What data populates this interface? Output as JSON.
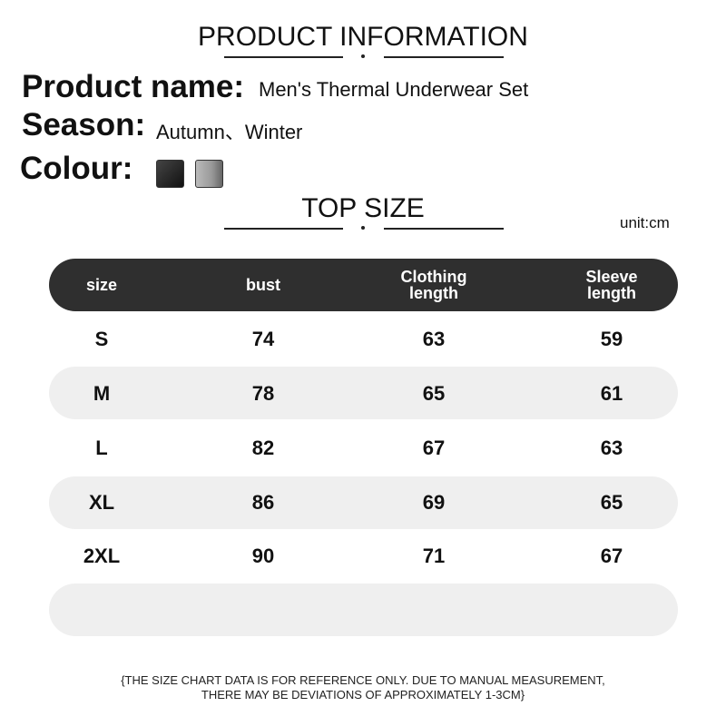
{
  "header": {
    "title": "PRODUCT INFORMATION"
  },
  "product": {
    "name_label": "Product name:",
    "name_value": "Men's Thermal Underwear Set",
    "season_label": "Season:",
    "season_value": "Autumn、Winter",
    "colour_label": "Colour:"
  },
  "size_section": {
    "title": "TOP SIZE",
    "unit": "unit:cm"
  },
  "table": {
    "header": [
      "size",
      "bust",
      "Clothing length",
      "Sleeve length"
    ],
    "rows": [
      [
        "S",
        74,
        63,
        59
      ],
      [
        "M",
        78,
        65,
        61
      ],
      [
        "L",
        82,
        67,
        63
      ],
      [
        "XL",
        86,
        69,
        65
      ],
      [
        "2XL",
        90,
        71,
        67
      ]
    ]
  },
  "footnote": "{THE SIZE CHART DATA IS FOR REFERENCE ONLY. DUE TO MANUAL MEASUREMENT, THERE MAY BE DEVIATIONS OF APPROXIMATELY 1-3CM}"
}
